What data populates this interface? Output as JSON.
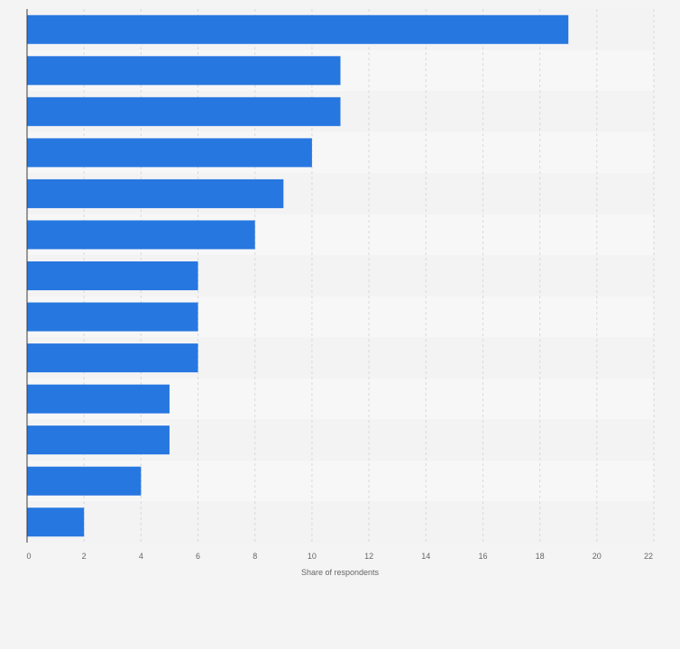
{
  "chart_data": {
    "type": "bar",
    "orientation": "horizontal",
    "title": "",
    "xlabel": "Share of respondents",
    "ylabel": "",
    "categories": [
      "",
      "",
      "",
      "",
      "",
      "",
      "",
      "",
      "",
      "",
      "",
      "",
      ""
    ],
    "values": [
      19,
      11,
      11,
      10,
      9,
      8,
      6,
      6,
      6,
      5,
      5,
      4,
      2
    ],
    "xlim": [
      0,
      22
    ],
    "xticks": [
      0,
      2,
      4,
      6,
      8,
      10,
      12,
      14,
      16,
      18,
      20,
      22
    ],
    "grid": true,
    "legend": "none"
  },
  "colors": {
    "bar": "#2777e0",
    "background": "#f4f4f5",
    "band_dark": "#f3f3f4",
    "band_light": "#f7f7f8",
    "grid": "#d9d9dc",
    "axis": "#3c3c3c",
    "tick_text": "#666666"
  }
}
